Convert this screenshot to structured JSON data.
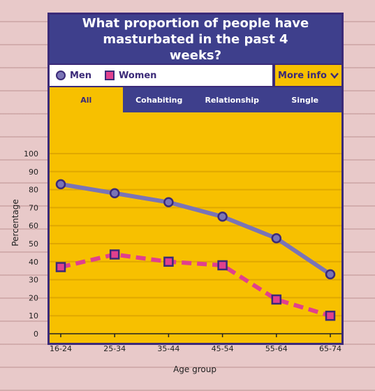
{
  "title": "What proportion of people have masturbated in the past 4 weeks?",
  "legend": {
    "men": "Men",
    "women": "Women"
  },
  "more_info": "More info",
  "tabs": [
    "All",
    "Cohabiting",
    "Relationship",
    "Single"
  ],
  "active_tab": "All",
  "chart_data": {
    "type": "line",
    "categories": [
      "16-24",
      "25-34",
      "35-44",
      "45-54",
      "55-64",
      "65-74"
    ],
    "series": [
      {
        "name": "Men",
        "values": [
          83,
          78,
          73,
          65,
          53,
          33
        ],
        "color": "#7a74b6",
        "marker": "circle",
        "dash": "solid"
      },
      {
        "name": "Women",
        "values": [
          37,
          44,
          40,
          38,
          19,
          10
        ],
        "color": "#e0408e",
        "marker": "square",
        "dash": "dashed"
      }
    ],
    "xlabel": "Age group",
    "ylabel": "Percentage",
    "ylim": [
      0,
      100
    ],
    "yticks": [
      0,
      10,
      20,
      30,
      40,
      50,
      60,
      70,
      80,
      90,
      100
    ],
    "grid": true
  },
  "colors": {
    "panel": "#f7c000",
    "header": "#3e3f8c",
    "border": "#3b2a78",
    "grid": "#e0a800"
  }
}
